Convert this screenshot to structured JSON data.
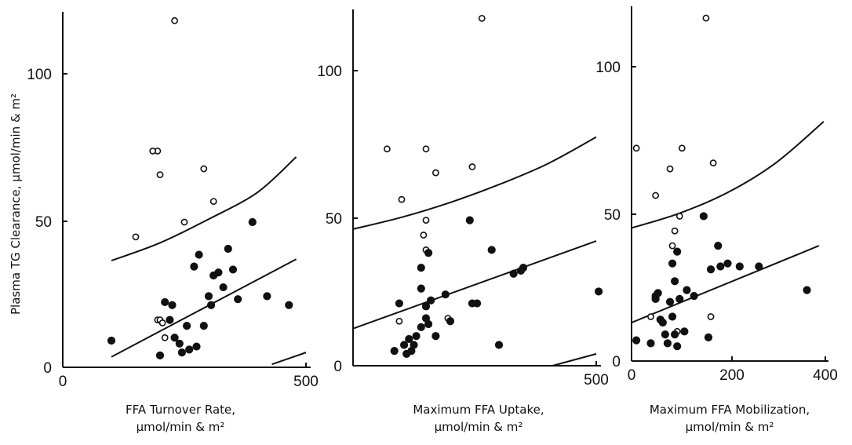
{
  "ylabel": "Plasma TG Clearance, μmol/min & m²",
  "chart_data": [
    {
      "type": "scatter",
      "xlabel_lines": [
        "FFA Turnover Rate,",
        "μmol/min & m²"
      ],
      "xlim": [
        0,
        500
      ],
      "ylim": [
        0,
        120
      ],
      "x_tick_labels": [
        "0",
        "500"
      ],
      "y_tick_labels": [
        "0",
        "50",
        "100"
      ],
      "series": [
        {
          "marker": "open-circle",
          "x": [
            230,
            195,
            185,
            200,
            195,
            290,
            310,
            250,
            150,
            200,
            210,
            205
          ],
          "y": [
            117,
            73,
            73,
            65,
            16,
            67,
            56,
            49,
            44,
            16,
            10,
            15
          ]
        },
        {
          "marker": "filled-circle",
          "x": [
            100,
            200,
            210,
            220,
            225,
            230,
            240,
            245,
            255,
            260,
            270,
            275,
            280,
            290,
            300,
            305,
            310,
            320,
            330,
            340,
            350,
            360,
            390,
            420,
            465
          ],
          "y": [
            9,
            4,
            22,
            16,
            21,
            10,
            8,
            5,
            14,
            6,
            34,
            7,
            38,
            14,
            24,
            21,
            31,
            32,
            27,
            40,
            33,
            23,
            49,
            24,
            21
          ]
        }
      ],
      "curves": [
        {
          "name": "upper",
          "x": [
            100,
            200,
            300,
            400,
            480
          ],
          "y": [
            36,
            42,
            50,
            59,
            71
          ]
        },
        {
          "name": "fit",
          "x": [
            100,
            480
          ],
          "y": [
            3.5,
            36.5
          ]
        },
        {
          "name": "lower",
          "x": [
            430,
            500
          ],
          "y": [
            1,
            5
          ]
        }
      ]
    },
    {
      "type": "scatter",
      "xlabel_lines": [
        "Maximum FFA Uptake,",
        "μmol/min & m²"
      ],
      "xlim": [
        0,
        500
      ],
      "ylim": [
        0,
        120
      ],
      "x_tick_labels": [
        "500"
      ],
      "y_tick_labels": [
        "0",
        "50",
        "100"
      ],
      "series": [
        {
          "marker": "open-circle",
          "x": [
            265,
            70,
            150,
            245,
            170,
            100,
            150,
            145,
            150,
            195,
            95,
            130
          ],
          "y": [
            117,
            73,
            73,
            67,
            65,
            56,
            49,
            44,
            39,
            16,
            15,
            10
          ]
        },
        {
          "marker": "filled-circle",
          "x": [
            85,
            95,
            105,
            110,
            115,
            120,
            125,
            130,
            140,
            140,
            140,
            150,
            155,
            150,
            155,
            160,
            170,
            190,
            200,
            240,
            245,
            255,
            285,
            300,
            330,
            345,
            350,
            505
          ],
          "y": [
            5,
            21,
            7,
            4,
            9,
            5,
            7,
            10,
            33,
            26,
            13,
            20,
            38,
            16,
            14,
            22,
            10,
            24,
            15,
            49,
            21,
            21,
            39,
            7,
            31,
            32,
            33,
            25
          ]
        }
      ],
      "curves": [
        {
          "name": "upper",
          "x": [
            0,
            100,
            200,
            300,
            400,
            500
          ],
          "y": [
            46,
            50,
            55,
            61,
            68,
            77
          ]
        },
        {
          "name": "fit",
          "x": [
            0,
            500
          ],
          "y": [
            12.5,
            42
          ]
        },
        {
          "name": "lower",
          "x": [
            410,
            500
          ],
          "y": [
            0,
            4
          ]
        }
      ]
    },
    {
      "type": "scatter",
      "xlabel_lines": [
        "Maximum FFA Mobilization,",
        "μmol/min & m²"
      ],
      "xlim": [
        0,
        400
      ],
      "ylim": [
        0,
        120
      ],
      "x_tick_labels": [
        "0",
        "200",
        "400"
      ],
      "y_tick_labels": [
        "0",
        "50",
        "100"
      ],
      "series": [
        {
          "marker": "open-circle",
          "x": [
            155,
            10,
            105,
            170,
            80,
            50,
            100,
            90,
            85,
            165,
            40,
            95
          ],
          "y": [
            116,
            72,
            72,
            67,
            65,
            56,
            49,
            44,
            39,
            15,
            15,
            10
          ]
        },
        {
          "marker": "filled-circle",
          "x": [
            10,
            40,
            50,
            50,
            55,
            60,
            65,
            70,
            75,
            80,
            85,
            90,
            85,
            90,
            95,
            95,
            100,
            110,
            115,
            130,
            150,
            160,
            165,
            180,
            185,
            200,
            225,
            265,
            365
          ],
          "y": [
            7,
            6,
            22,
            21,
            23,
            14,
            13,
            9,
            6,
            20,
            33,
            27,
            15,
            9,
            37,
            5,
            21,
            10,
            24,
            22,
            49,
            8,
            31,
            39,
            32,
            33,
            32,
            32,
            24
          ]
        }
      ],
      "curves": [
        {
          "name": "upper",
          "x": [
            0,
            100,
            200,
            300,
            400
          ],
          "y": [
            45,
            50,
            57,
            67,
            81
          ]
        },
        {
          "name": "fit",
          "x": [
            0,
            390
          ],
          "y": [
            13,
            39
          ]
        }
      ]
    }
  ]
}
